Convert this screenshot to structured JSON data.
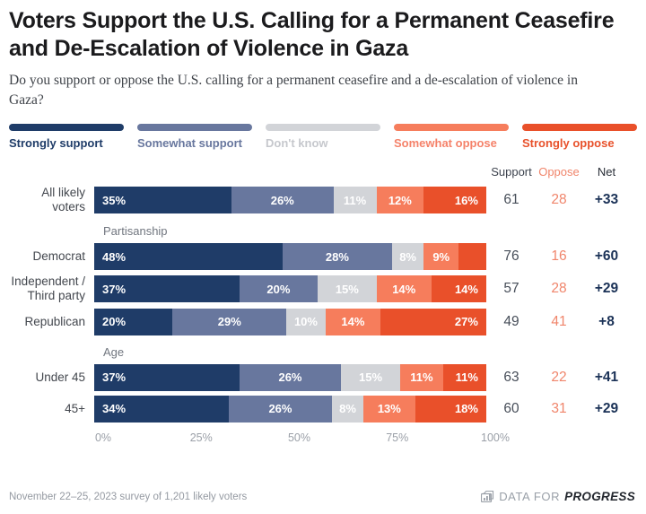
{
  "header": {
    "title": "Voters Support the U.S. Calling for a Permanent Ceasefire and De-Escalation of Violence in Gaza",
    "subtitle": "Do you support or oppose the U.S. calling for a permanent ceasefire and a de-escalation of violence in Gaza?"
  },
  "colors": {
    "strongly_support": "#1f3c68",
    "somewhat_support": "#68779e",
    "dont_know": "#d2d4d8",
    "somewhat_oppose": "#f67d5c",
    "strongly_oppose": "#e9502a"
  },
  "legend": [
    {
      "label": "Strongly support",
      "color": "#1f3c68",
      "text_color": "#1f3c68"
    },
    {
      "label": "Somewhat support",
      "color": "#68779e",
      "text_color": "#68779e"
    },
    {
      "label": "Don't know",
      "color": "#d2d4d8",
      "text_color": "#c6c8cd"
    },
    {
      "label": "Somewhat oppose",
      "color": "#f67d5c",
      "text_color": "#f5826a"
    },
    {
      "label": "Strongly oppose",
      "color": "#e9502a",
      "text_color": "#e8512b"
    }
  ],
  "chart_data": {
    "type": "bar",
    "orientation": "horizontal",
    "stacked": true,
    "series": [
      "Strongly support",
      "Somewhat support",
      "Don't know",
      "Somewhat oppose",
      "Strongly oppose"
    ],
    "series_colors": [
      "#1f3c68",
      "#68779e",
      "#d2d4d8",
      "#f67d5c",
      "#e9502a"
    ],
    "stat_columns": {
      "support": "Support",
      "oppose": "Oppose",
      "net": "Net"
    },
    "x_axis": {
      "range": [
        0,
        100
      ],
      "ticks": [
        "0%",
        "25%",
        "50%",
        "75%",
        "100%"
      ]
    },
    "groups": [
      {
        "section": "",
        "rows": [
          {
            "label": "All likely voters",
            "values": [
              35,
              26,
              11,
              12,
              16
            ],
            "value_labels": [
              "35%",
              "26%",
              "11%",
              "12%",
              "16%"
            ],
            "support": "61",
            "oppose": "28",
            "net": "+33"
          }
        ]
      },
      {
        "section": "Partisanship",
        "rows": [
          {
            "label": "Democrat",
            "values": [
              48,
              28,
              8,
              9,
              7
            ],
            "value_labels": [
              "48%",
              "28%",
              "8%",
              "9%",
              ""
            ],
            "support": "76",
            "oppose": "16",
            "net": "+60"
          },
          {
            "label": "Independent / Third party",
            "values": [
              37,
              20,
              15,
              14,
              14
            ],
            "value_labels": [
              "37%",
              "20%",
              "15%",
              "14%",
              "14%"
            ],
            "support": "57",
            "oppose": "28",
            "net": "+29"
          },
          {
            "label": "Republican",
            "values": [
              20,
              29,
              10,
              14,
              27
            ],
            "value_labels": [
              "20%",
              "29%",
              "10%",
              "14%",
              "27%"
            ],
            "support": "49",
            "oppose": "41",
            "net": "+8"
          }
        ]
      },
      {
        "section": "Age",
        "rows": [
          {
            "label": "Under 45",
            "values": [
              37,
              26,
              15,
              11,
              11
            ],
            "value_labels": [
              "37%",
              "26%",
              "15%",
              "11%",
              "11%"
            ],
            "support": "63",
            "oppose": "22",
            "net": "+41"
          },
          {
            "label": "45+",
            "values": [
              34,
              26,
              8,
              13,
              18
            ],
            "value_labels": [
              "34%",
              "26%",
              "8%",
              "13%",
              "18%"
            ],
            "support": "60",
            "oppose": "31",
            "net": "+29"
          }
        ]
      }
    ]
  },
  "footer": {
    "note": "November 22–25, 2023 survey of 1,201 likely voters",
    "logo_prefix": "DATA FOR",
    "logo_suffix": "PROGRESS"
  }
}
